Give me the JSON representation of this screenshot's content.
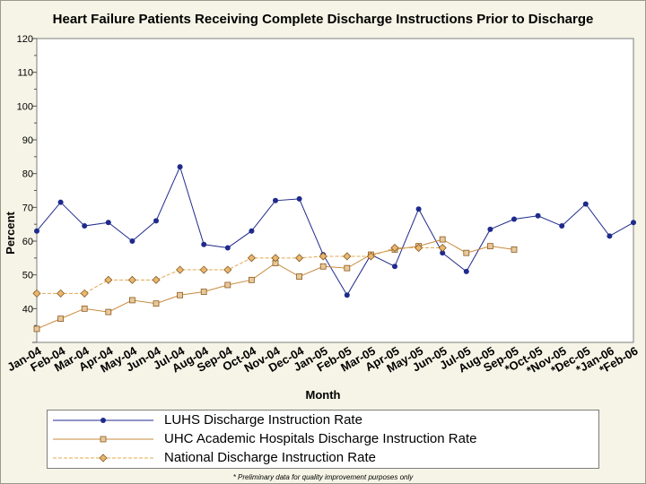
{
  "chart_data": {
    "type": "line",
    "title": "Heart Failure Patients Receiving Complete Discharge Instructions Prior to Discharge",
    "xlabel": "Month",
    "ylabel": "Percent",
    "ylim": [
      30,
      120
    ],
    "yticks": [
      40,
      50,
      60,
      70,
      80,
      90,
      100,
      110,
      120
    ],
    "grid": false,
    "legend": "bottom",
    "footnote": "* Preliminary data for quality improvement purposes only",
    "categories": [
      "Jan-04",
      "Feb-04",
      "Mar-04",
      "Apr-04",
      "May-04",
      "Jun-04",
      "Jul-04",
      "Aug-04",
      "Sep-04",
      "Oct-04",
      "Nov-04",
      "Dec-04",
      "Jan-05",
      "Feb-05",
      "Mar-05",
      "Apr-05",
      "May-05",
      "Jun-05",
      "Jul-05",
      "Aug-05",
      "Sep-05",
      "*Oct-05",
      "*Nov-05",
      "*Dec-05",
      "*Jan-06",
      "*Feb-06"
    ],
    "series": [
      {
        "name": "LUHS Discharge Instruction Rate",
        "color": "#1f2a8c",
        "marker": "circle",
        "values": [
          63,
          71.5,
          64.5,
          65.5,
          60,
          66,
          82,
          59,
          58,
          63,
          72,
          72.5,
          56,
          44,
          56,
          52.5,
          69.5,
          56.5,
          51,
          63.5,
          66.5,
          67.5,
          64.5,
          71,
          61.5,
          65.5
        ]
      },
      {
        "name": "UHC Academic Hospitals Discharge Instruction Rate",
        "color": "#c98a3c",
        "marker": "square",
        "values": [
          34,
          37,
          40,
          39,
          42.5,
          41.5,
          44,
          45,
          47,
          48.5,
          53.5,
          49.5,
          52.5,
          52,
          56,
          57.5,
          58.5,
          60.5,
          56.5,
          58.5,
          57.5,
          null,
          null,
          null,
          null,
          null
        ]
      },
      {
        "name": "National Discharge Instruction Rate",
        "color": "#e0a850",
        "marker": "diamond",
        "values": [
          44.5,
          44.5,
          44.5,
          48.5,
          48.5,
          48.5,
          51.5,
          51.5,
          51.5,
          55,
          55,
          55,
          55.5,
          55.5,
          55.5,
          58,
          58,
          58,
          null,
          null,
          null,
          null,
          null,
          null,
          null,
          null
        ]
      }
    ]
  }
}
